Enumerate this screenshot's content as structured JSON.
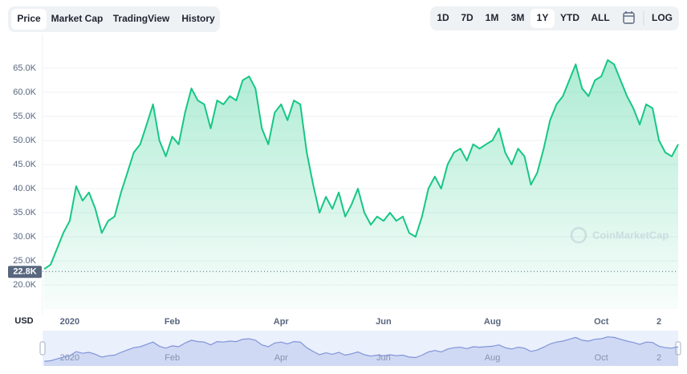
{
  "chart_data": {
    "type": "line",
    "tabs": [
      "Price",
      "Market Cap",
      "TradingView",
      "History"
    ],
    "active_tab": 0,
    "ranges": [
      "1D",
      "7D",
      "1M",
      "3M",
      "1Y",
      "YTD",
      "ALL"
    ],
    "active_range": 4,
    "log_label": "LOG",
    "currency": "USD",
    "watermark": "CoinMarketCap",
    "color": "#16c784",
    "navigator_color": "#8194d9",
    "grid": true,
    "values": [
      23300,
      24200,
      27500,
      30800,
      33300,
      40500,
      37500,
      39200,
      35800,
      30800,
      33300,
      34200,
      39200,
      43300,
      47500,
      49200,
      53300,
      57500,
      50000,
      46700,
      50800,
      49200,
      55800,
      60800,
      58300,
      57500,
      52500,
      58300,
      57500,
      59200,
      58300,
      62500,
      63300,
      60800,
      52500,
      49200,
      55800,
      57500,
      54200,
      58300,
      57500,
      47500,
      40800,
      35000,
      38300,
      35800,
      39200,
      34200,
      36700,
      40000,
      35000,
      32500,
      34200,
      33300,
      35000,
      33300,
      34200,
      30800,
      30000,
      34200,
      40000,
      42500,
      40000,
      45000,
      47500,
      48300,
      45800,
      49200,
      48300,
      49200,
      50000,
      52500,
      47500,
      45000,
      48300,
      46700,
      40800,
      43300,
      48300,
      54200,
      57500,
      59200,
      62500,
      65800,
      60800,
      59200,
      62500,
      63300,
      66700,
      65800,
      62500,
      59200,
      56700,
      53300,
      57500,
      56700,
      50000,
      47500,
      46700,
      49200
    ],
    "current": {
      "value": 22800,
      "label": "22.8K"
    },
    "xlim": [
      0,
      99
    ],
    "xticks": [
      {
        "value": 4,
        "label": "2020"
      },
      {
        "value": 20,
        "label": "Feb"
      },
      {
        "value": 37,
        "label": "Apr"
      },
      {
        "value": 53,
        "label": "Jun"
      },
      {
        "value": 70,
        "label": "Aug"
      },
      {
        "value": 87,
        "label": "Oct"
      },
      {
        "value": 96,
        "label": "2"
      }
    ],
    "ylim": [
      15000,
      72000
    ],
    "yticks": [
      {
        "value": 20000,
        "label": "20.0K"
      },
      {
        "value": 25000,
        "label": "25.0K"
      },
      {
        "value": 30000,
        "label": "30.0K"
      },
      {
        "value": 35000,
        "label": "35.0K"
      },
      {
        "value": 40000,
        "label": "40.0K"
      },
      {
        "value": 45000,
        "label": "45.0K"
      },
      {
        "value": 50000,
        "label": "50.0K"
      },
      {
        "value": 55000,
        "label": "55.0K"
      },
      {
        "value": 60000,
        "label": "60.0K"
      },
      {
        "value": 65000,
        "label": "65.0K"
      }
    ]
  }
}
